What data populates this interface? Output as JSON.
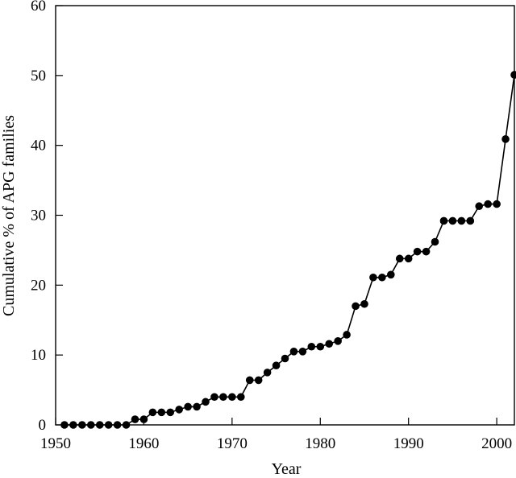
{
  "chart_data": {
    "type": "line",
    "title": "",
    "xlabel": "Year",
    "ylabel": "Cumulative % of APG families",
    "xlim": [
      1950,
      2002
    ],
    "ylim": [
      0,
      60
    ],
    "xticks": [
      1950,
      1960,
      1970,
      1980,
      1990,
      2000
    ],
    "yticks": [
      0,
      10,
      20,
      30,
      40,
      50,
      60
    ],
    "grid": false,
    "legend": "none",
    "marker": "filled-circle",
    "color": "#000000",
    "series": [
      {
        "x": [
          1951,
          1952,
          1953,
          1954,
          1955,
          1956,
          1957,
          1958,
          1959,
          1960,
          1961,
          1962,
          1963,
          1964,
          1965,
          1966,
          1967,
          1968,
          1969,
          1970,
          1971,
          1972,
          1973,
          1974,
          1975,
          1976,
          1977,
          1978,
          1979,
          1980,
          1981,
          1982,
          1983,
          1984,
          1985,
          1986,
          1987,
          1988,
          1989,
          1990,
          1991,
          1992,
          1993,
          1994,
          1995,
          1996,
          1997,
          1998,
          1999,
          2000,
          2001,
          2002
        ],
        "y": [
          0,
          0,
          0,
          0,
          0,
          0,
          0,
          0,
          0.8,
          0.8,
          1.8,
          1.8,
          1.8,
          2.2,
          2.6,
          2.6,
          3.3,
          4.0,
          4.0,
          4.0,
          4.0,
          6.4,
          6.4,
          7.5,
          8.5,
          9.5,
          10.5,
          10.5,
          11.2,
          11.2,
          11.6,
          12.0,
          12.9,
          17.0,
          17.3,
          21.1,
          21.1,
          21.5,
          23.8,
          23.8,
          24.8,
          24.8,
          26.2,
          29.2,
          29.2,
          29.2,
          29.2,
          31.3,
          31.6,
          31.6,
          40.9,
          50.1
        ]
      }
    ]
  }
}
